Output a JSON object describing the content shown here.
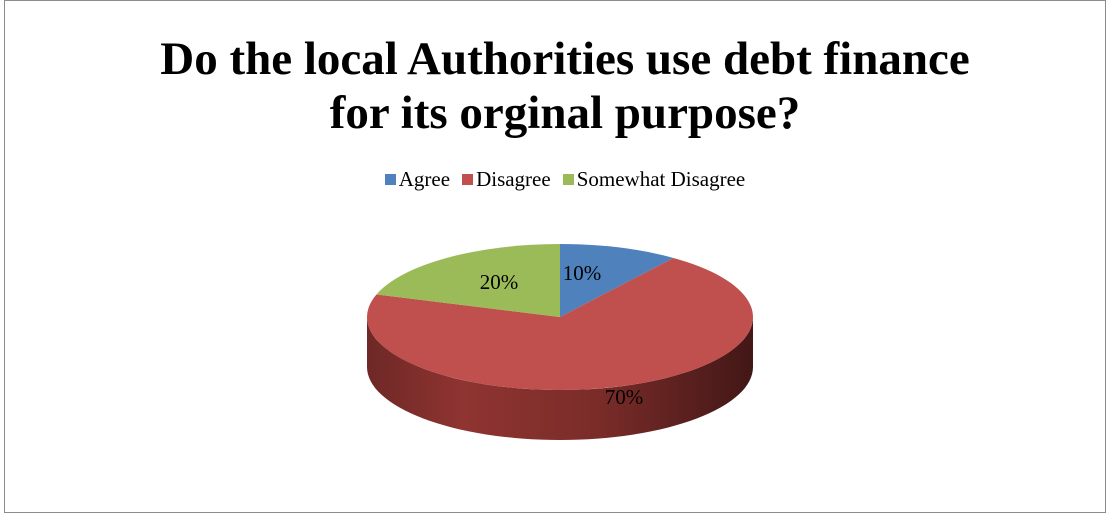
{
  "chart_data": {
    "type": "pie",
    "title_lines": [
      "Do the local Authorities use debt finance",
      "for its orginal purpose?"
    ],
    "categories": [
      "Agree",
      "Disagree",
      "Somewhat Disagree"
    ],
    "values": [
      10,
      70,
      20
    ],
    "labels": [
      "10%",
      "70%",
      "20%"
    ],
    "colors": [
      "#4f81bd",
      "#c0504d",
      "#9bbb59"
    ],
    "style": "3d",
    "legend_position": "top"
  }
}
